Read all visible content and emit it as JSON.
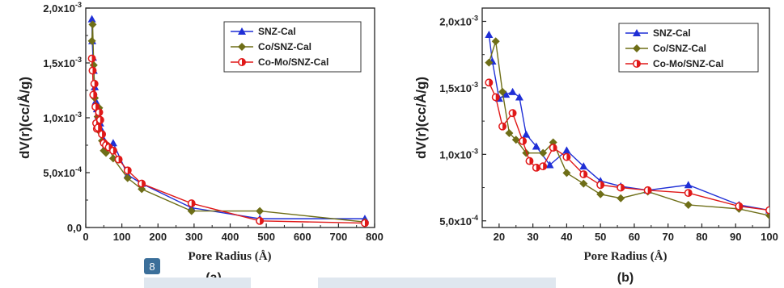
{
  "chart_data": [
    {
      "type": "line",
      "panel_label": "(a)",
      "xlabel": "Pore Radius (Å)",
      "ylabel": "dV(r)(cc/Å/g)",
      "xlim": [
        0,
        800
      ],
      "ylim": [
        0,
        0.002
      ],
      "xticks": [
        "0",
        "100",
        "200",
        "300",
        "400",
        "500",
        "600",
        "700",
        "800"
      ],
      "yticks": [
        {
          "mant": "0,0",
          "exp": ""
        },
        {
          "mant": "5,0x10",
          "exp": "-4"
        },
        {
          "mant": "1,0x10",
          "exp": "-3"
        },
        {
          "mant": "1,5x10",
          "exp": "-3"
        },
        {
          "mant": "2,0x10",
          "exp": "-3"
        }
      ],
      "legend_position": "top-right",
      "series": [
        {
          "name": "SNZ-Cal",
          "color": "#1f2fd6",
          "marker": "triangle",
          "x": [
            17,
            18,
            20,
            22,
            25,
            28,
            31,
            35,
            40,
            45,
            50,
            56,
            64,
            76,
            116,
            155,
            293,
            482,
            773
          ],
          "y": [
            0.0019,
            0.0017,
            0.00155,
            0.00143,
            0.00128,
            0.00115,
            0.00108,
            0.00102,
            0.00095,
            0.00088,
            0.0008,
            0.00075,
            0.00073,
            0.00077,
            0.00048,
            0.0004,
            0.00018,
            8e-05,
            8e-05
          ]
        },
        {
          "name": "Co/SNZ-Cal",
          "color": "#6e6e17",
          "marker": "diamond",
          "x": [
            17,
            19,
            22,
            25,
            28,
            33,
            37,
            40,
            45,
            50,
            56,
            64,
            76,
            116,
            155,
            293,
            482,
            773
          ],
          "y": [
            0.0017,
            0.00185,
            0.00148,
            0.00118,
            0.00111,
            0.00101,
            0.00109,
            0.00087,
            0.00079,
            0.0007,
            0.00068,
            0.00074,
            0.00063,
            0.00045,
            0.00035,
            0.00015,
            0.00015,
            5e-05
          ]
        },
        {
          "name": "Co-Mo/SNZ-Cal",
          "color": "#e01818",
          "marker": "halfcircle",
          "x": [
            17,
            19,
            21,
            24,
            27,
            29,
            31,
            34,
            37,
            40,
            45,
            50,
            56,
            64,
            76,
            91,
            116,
            155,
            293,
            482,
            773
          ],
          "y": [
            0.00154,
            0.00143,
            0.00121,
            0.00131,
            0.0011,
            0.00095,
            0.0009,
            0.00091,
            0.00105,
            0.00098,
            0.00085,
            0.00077,
            0.00075,
            0.00073,
            0.0007,
            0.00062,
            0.00052,
            0.0004,
            0.00022,
            6e-05,
            4e-05
          ]
        }
      ]
    },
    {
      "type": "line",
      "panel_label": "(b)",
      "xlabel": "Pore Radius (Å)",
      "ylabel": "dV(r)(cc/Å/g)",
      "xlim": [
        15,
        100
      ],
      "ylim": [
        0.00045,
        0.0021
      ],
      "xticks": [
        "20",
        "30",
        "40",
        "50",
        "60",
        "70",
        "80",
        "90",
        "100"
      ],
      "yticks": [
        {
          "mant": "5,0x10",
          "exp": "-4"
        },
        {
          "mant": "1,0x10",
          "exp": "-3"
        },
        {
          "mant": "1,5x10",
          "exp": "-3"
        },
        {
          "mant": "2,0x10",
          "exp": "-3"
        }
      ],
      "legend_position": "top-right",
      "series": [
        {
          "name": "SNZ-Cal",
          "color": "#1f2fd6",
          "marker": "triangle",
          "x": [
            17,
            18,
            20,
            22,
            24,
            26,
            28,
            31,
            35,
            40,
            45,
            50,
            56,
            64,
            76,
            91,
            100
          ],
          "y": [
            0.0019,
            0.0017,
            0.00142,
            0.00145,
            0.00147,
            0.00143,
            0.00115,
            0.00106,
            0.00092,
            0.00103,
            0.00091,
            0.0008,
            0.00076,
            0.00073,
            0.00077,
            0.00062,
            0.00058
          ]
        },
        {
          "name": "Co/SNZ-Cal",
          "color": "#6e6e17",
          "marker": "diamond",
          "x": [
            17,
            19,
            21,
            23,
            25,
            28,
            33,
            36,
            40,
            45,
            50,
            56,
            64,
            76,
            91,
            100
          ],
          "y": [
            0.00169,
            0.00185,
            0.00147,
            0.00116,
            0.00111,
            0.00101,
            0.00101,
            0.00109,
            0.00086,
            0.00078,
            0.0007,
            0.00067,
            0.00072,
            0.00062,
            0.00059,
            0.00054
          ]
        },
        {
          "name": "Co-Mo/SNZ-Cal",
          "color": "#e01818",
          "marker": "halfcircle",
          "x": [
            17,
            19,
            21,
            24,
            27,
            29,
            31,
            33,
            36,
            40,
            45,
            50,
            56,
            64,
            76,
            91,
            100
          ],
          "y": [
            0.00154,
            0.00143,
            0.00121,
            0.00131,
            0.0011,
            0.00095,
            0.0009,
            0.00091,
            0.00105,
            0.00098,
            0.00085,
            0.00077,
            0.00075,
            0.00073,
            0.00071,
            0.00061,
            0.00058
          ]
        }
      ]
    }
  ],
  "overlay": {
    "page_badge": "8"
  }
}
